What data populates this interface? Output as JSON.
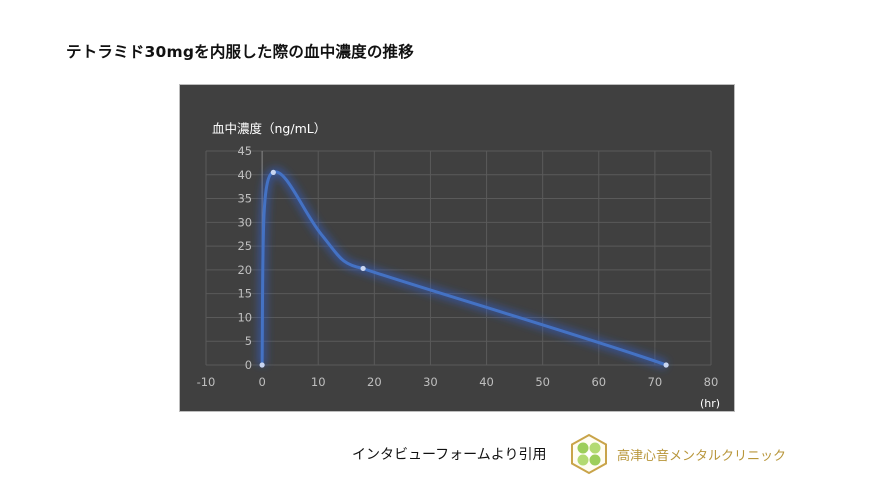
{
  "page": {
    "title": "テトラミド30mgを内服した際の血中濃度の推移",
    "source_text": "インタビューフォームより引用",
    "clinic_name": "高津心音メンタルクリニック",
    "logo_icon": "hexagon-clover-logo"
  },
  "colors": {
    "chart_bg": "#404040",
    "grid": "#5a5a5a",
    "axis_text": "#bfbfbf",
    "line": "#4472c4",
    "glow": "#2f5fd0",
    "marker": "#c9d6f2",
    "clinic_text": "#b8963a"
  },
  "chart_data": {
    "type": "line",
    "title": "テトラミド30mgを内服した際の血中濃度の推移",
    "xlabel": "(hr)",
    "ylabel": "血中濃度（ng/mL）",
    "xlim": [
      -10,
      80
    ],
    "ylim": [
      0,
      45
    ],
    "xticks": [
      -10,
      0,
      10,
      20,
      30,
      40,
      50,
      60,
      70,
      80
    ],
    "yticks": [
      0,
      5,
      10,
      15,
      20,
      25,
      30,
      35,
      40,
      45
    ],
    "grid": true,
    "legend": null,
    "smooth": true,
    "series": [
      {
        "name": "血中濃度",
        "x": [
          0,
          2,
          18,
          72
        ],
        "y": [
          0,
          40.5,
          20.3,
          0
        ]
      }
    ]
  }
}
